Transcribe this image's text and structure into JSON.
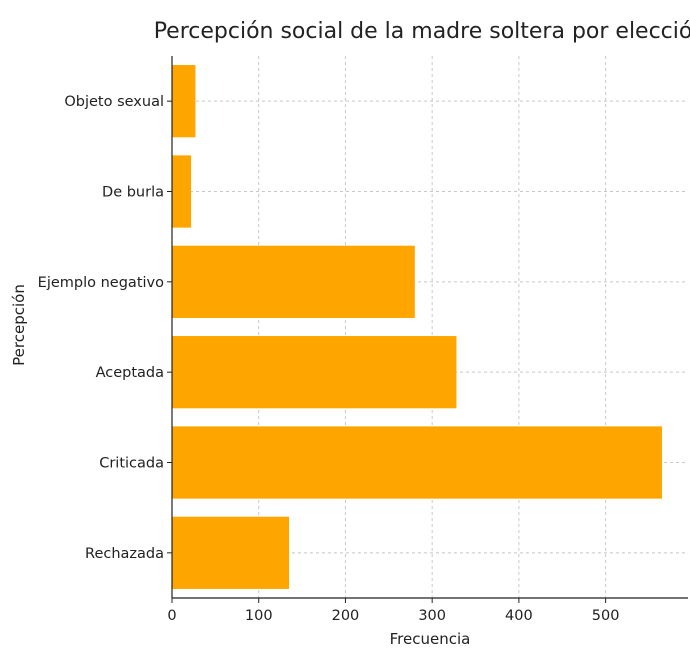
{
  "chart_data": {
    "type": "bar",
    "orientation": "horizontal",
    "title": "Percepción social de la madre soltera por elección",
    "xlabel": "Frecuencia",
    "ylabel": "Percepción",
    "categories": [
      "Rechazada",
      "Criticada",
      "Aceptada",
      "Ejemplo negativo",
      "De burla",
      "Objeto sexual"
    ],
    "values": [
      135,
      565,
      328,
      280,
      22,
      27
    ],
    "xlim": [
      0,
      595
    ],
    "xticks": [
      0,
      100,
      200,
      300,
      400,
      500
    ],
    "grid": true,
    "bar_color": "#ffa500"
  }
}
